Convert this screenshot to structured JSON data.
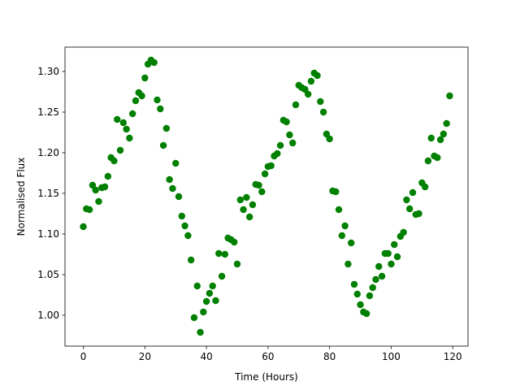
{
  "chart_data": {
    "type": "scatter",
    "xlabel": "Time (Hours)",
    "ylabel": "Normalised Flux",
    "color": "#008000",
    "xlim": [
      -5.95,
      124.95
    ],
    "ylim": [
      0.962,
      1.33
    ],
    "xticks": [
      0,
      20,
      40,
      60,
      80,
      100,
      120
    ],
    "yticks": [
      {
        "value": 1.0,
        "label": "1.00"
      },
      {
        "value": 1.05,
        "label": "1.05"
      },
      {
        "value": 1.1,
        "label": "1.10"
      },
      {
        "value": 1.15,
        "label": "1.15"
      },
      {
        "value": 1.2,
        "label": "1.20"
      },
      {
        "value": 1.25,
        "label": "1.25"
      },
      {
        "value": 1.3,
        "label": "1.30"
      }
    ],
    "x": [
      0,
      1,
      2,
      3,
      4,
      5,
      6,
      7,
      8,
      9,
      10,
      11,
      12,
      13,
      14,
      15,
      16,
      17,
      18,
      19,
      20,
      21,
      22,
      23,
      24,
      25,
      26,
      27,
      28,
      29,
      30,
      31,
      32,
      33,
      34,
      35,
      36,
      37,
      38,
      39,
      40,
      41,
      42,
      43,
      44,
      45,
      46,
      47,
      48,
      49,
      50,
      51,
      52,
      53,
      54,
      55,
      56,
      57,
      58,
      59,
      60,
      61,
      62,
      63,
      64,
      65,
      66,
      67,
      68,
      69,
      70,
      71,
      72,
      73,
      74,
      75,
      76,
      77,
      78,
      79,
      80,
      81,
      82,
      83,
      84,
      85,
      86,
      87,
      88,
      89,
      90,
      91,
      92,
      93,
      94,
      95,
      96,
      97,
      98,
      99,
      100,
      101,
      102,
      103,
      104,
      105,
      106,
      107,
      108,
      109,
      110,
      111,
      112,
      113,
      114,
      115,
      116,
      117,
      118,
      119
    ],
    "values": [
      1.109,
      1.131,
      1.13,
      1.16,
      1.154,
      1.14,
      1.157,
      1.158,
      1.171,
      1.194,
      1.19,
      1.241,
      1.203,
      1.237,
      1.229,
      1.218,
      1.248,
      1.264,
      1.274,
      1.27,
      1.292,
      1.309,
      1.314,
      1.311,
      1.265,
      1.254,
      1.209,
      1.23,
      1.167,
      1.156,
      1.187,
      1.146,
      1.122,
      1.11,
      1.098,
      1.068,
      0.997,
      1.036,
      0.979,
      1.004,
      1.017,
      1.027,
      1.036,
      1.018,
      1.076,
      1.048,
      1.075,
      1.095,
      1.093,
      1.09,
      1.063,
      1.142,
      1.13,
      1.145,
      1.121,
      1.136,
      1.161,
      1.16,
      1.152,
      1.174,
      1.183,
      1.184,
      1.196,
      1.199,
      1.209,
      1.24,
      1.238,
      1.222,
      1.212,
      1.259,
      1.283,
      1.28,
      1.278,
      1.272,
      1.288,
      1.298,
      1.295,
      1.263,
      1.25,
      1.223,
      1.217,
      1.153,
      1.152,
      1.13,
      1.098,
      1.11,
      1.063,
      1.089,
      1.038,
      1.026,
      1.013,
      1.004,
      1.002,
      1.024,
      1.034,
      1.044,
      1.06,
      1.048,
      1.076,
      1.076,
      1.063,
      1.087,
      1.072,
      1.097,
      1.102,
      1.142,
      1.131,
      1.151,
      1.124,
      1.125,
      1.163,
      1.158,
      1.19,
      1.218,
      1.196,
      1.194,
      1.216,
      1.223,
      1.236,
      1.27
    ]
  }
}
